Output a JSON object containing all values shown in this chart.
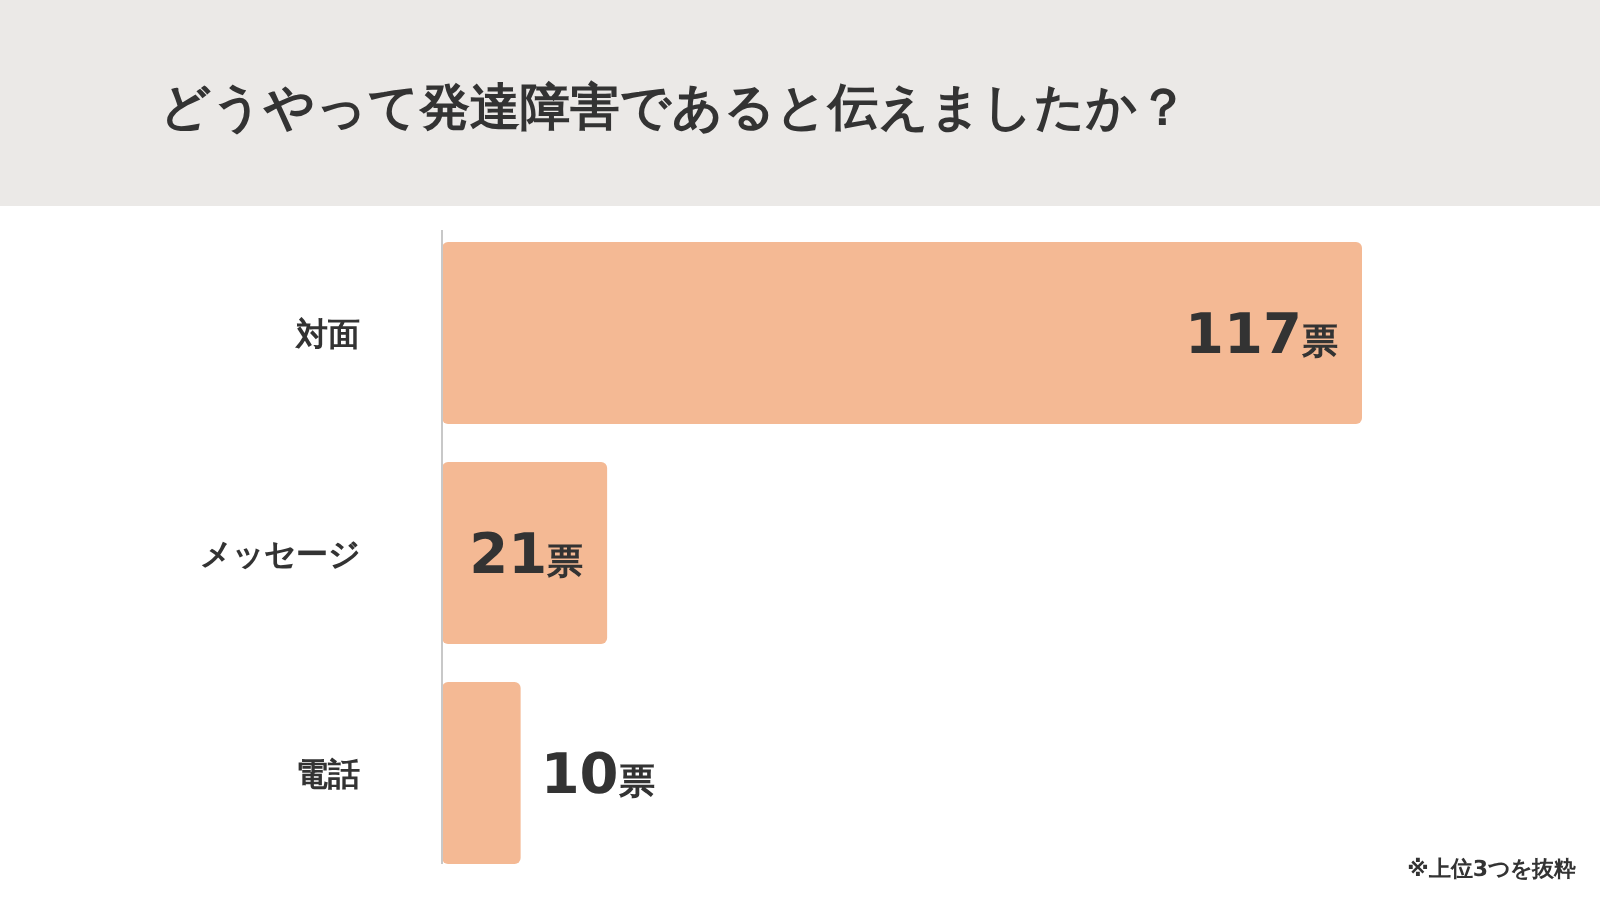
{
  "chart_data": {
    "type": "bar",
    "orientation": "horizontal",
    "title": "どうやって発達障害であると伝えましたか？",
    "categories": [
      "対面",
      "メッセージ",
      "電話"
    ],
    "values": [
      117,
      21,
      10
    ],
    "value_labels": [
      "117票",
      "21票",
      "10票"
    ],
    "color": "#f4b994",
    "annotations": [
      "※上位3つを抜粋"
    ]
  }
}
